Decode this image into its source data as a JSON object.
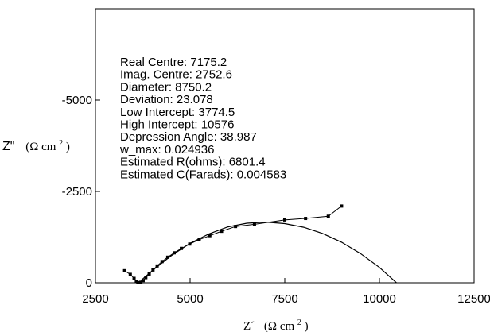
{
  "chart_data": {
    "type": "scatter",
    "xlabel": "Z´",
    "xunit_prefix": "(Ω cm",
    "xunit_exp": "2",
    "xunit_suffix": ")",
    "ylabel": "Z\"",
    "yunit_prefix": "(Ω cm",
    "yunit_exp": "2",
    "yunit_suffix": ")",
    "xlim": [
      2500,
      12500
    ],
    "ylim": [
      0,
      -7500
    ],
    "xticks": [
      2500,
      5000,
      7500,
      10000,
      12500
    ],
    "xtick_labels": [
      "2500",
      "5000",
      "7500",
      "10000",
      "12500"
    ],
    "yticks": [
      0,
      -2500,
      -5000
    ],
    "ytick_labels": [
      "0",
      "-2500",
      "-5000"
    ],
    "grid": false,
    "annotations": [
      "Real Centre: 7175.2",
      "Imag. Centre: 2752.6",
      "Diameter: 8750.2",
      "Deviation: 23.078",
      "Low Intercept: 3774.5",
      "High Intercept: 10576",
      "Depression Angle: 38.987",
      "w_max: 0.024936",
      "Estimated R(ohms): 6801.4",
      "Estimated C(Farads): 0.004583"
    ],
    "series": [
      {
        "type": "line+markers",
        "x": [
          3270,
          3420,
          3520,
          3580,
          3620,
          3660,
          3700,
          3760,
          3830,
          3920,
          4020,
          4130,
          4260,
          4410,
          4580,
          4770,
          4990,
          5240,
          5520,
          5830,
          6200,
          6700,
          7500,
          8050,
          8650,
          9000
        ],
        "y": [
          -330,
          -230,
          -120,
          -40,
          -5,
          0,
          -15,
          -60,
          -140,
          -240,
          -350,
          -460,
          -580,
          -700,
          -820,
          -940,
          -1060,
          -1180,
          -1290,
          -1410,
          -1540,
          -1600,
          -1720,
          -1760,
          -1820,
          -2100
        ]
      },
      {
        "type": "fit-arc",
        "x": [
          3700,
          4000,
          4500,
          5000,
          5500,
          6000,
          6500,
          7000,
          7500,
          8000,
          8500,
          9000,
          9500,
          10000,
          10300,
          10450
        ],
        "y": [
          -60,
          -330,
          -740,
          -1080,
          -1340,
          -1530,
          -1630,
          -1660,
          -1620,
          -1520,
          -1350,
          -1110,
          -800,
          -420,
          -140,
          0
        ]
      }
    ]
  }
}
